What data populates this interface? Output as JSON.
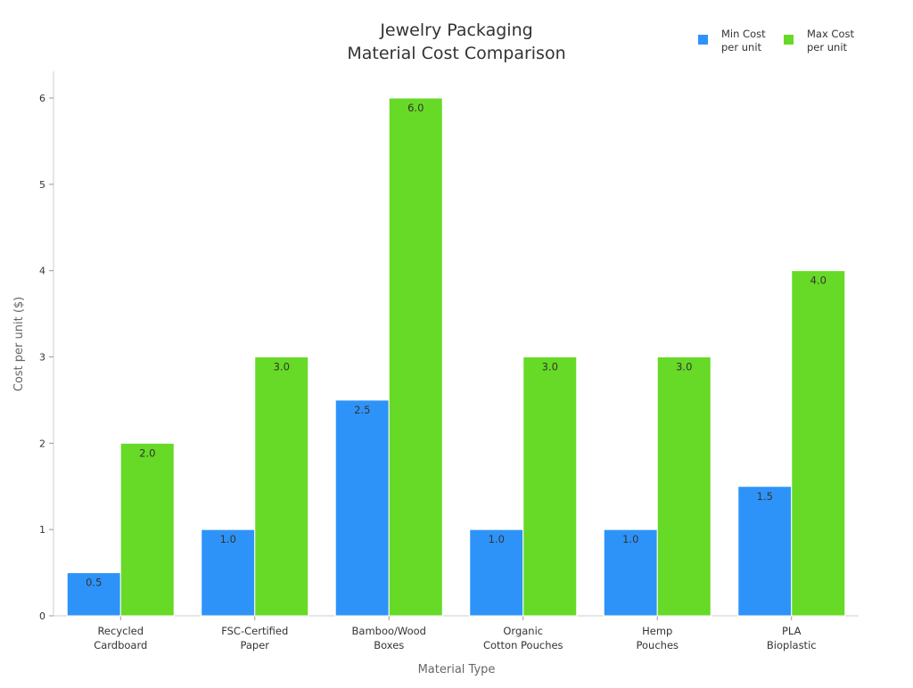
{
  "chart_data": {
    "type": "bar",
    "title": [
      "Jewelry Packaging",
      "Material Cost Comparison"
    ],
    "xlabel": "Material Type",
    "ylabel": "Cost per unit ($)",
    "categories": [
      [
        "Recycled",
        "Cardboard"
      ],
      [
        "FSC-Certified",
        "Paper"
      ],
      [
        "Bamboo/Wood",
        "Boxes"
      ],
      [
        "Organic",
        "Cotton Pouches"
      ],
      [
        "Hemp",
        "Pouches"
      ],
      [
        "PLA",
        "Bioplastic"
      ]
    ],
    "series": [
      {
        "name": [
          "Min Cost",
          "per unit"
        ],
        "color": "#2e93f8",
        "values": [
          0.5,
          1.0,
          2.5,
          1.0,
          1.0,
          1.5
        ],
        "labels": [
          "0.5",
          "1.0",
          "2.5",
          "1.0",
          "1.0",
          "1.5"
        ]
      },
      {
        "name": [
          "Max Cost",
          "per unit"
        ],
        "color": "#66da26",
        "values": [
          2.0,
          3.0,
          6.0,
          3.0,
          3.0,
          4.0
        ],
        "labels": [
          "2.0",
          "3.0",
          "6.0",
          "3.0",
          "3.0",
          "4.0"
        ]
      }
    ],
    "ylim": [
      0,
      6.3
    ],
    "yticks": [
      "0",
      "1",
      "2",
      "3",
      "4",
      "5",
      "6"
    ],
    "grid": false,
    "legend": "top-right"
  }
}
